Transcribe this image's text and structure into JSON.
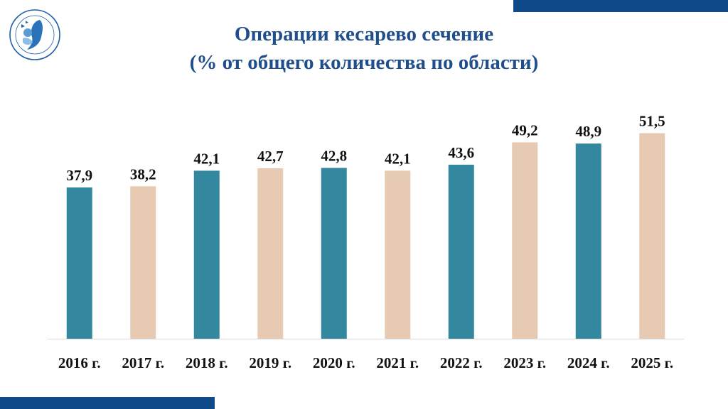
{
  "header": {
    "title_line1": "Операции кесарево сечение",
    "title_line2": "(% от общего количества по области)"
  },
  "colors": {
    "accent_bar": "#0f4a8a",
    "title": "#1f4e8a",
    "series_teal": "#33879e",
    "series_beige": "#e6cbb2",
    "axis": "#d9d9d9"
  },
  "chart_data": {
    "type": "bar",
    "title": "Операции кесарево сечение (% от общего количества по области)",
    "categories": [
      "2016 г.",
      "2017 г.",
      "2018 г.",
      "2019 г.",
      "2020 г.",
      "2021 г.",
      "2022 г.",
      "2023 г.",
      "2024 г.",
      "2025 г."
    ],
    "values": [
      37.9,
      38.2,
      42.1,
      42.7,
      42.8,
      42.1,
      43.6,
      49.2,
      48.9,
      51.5
    ],
    "value_labels": [
      "37,9",
      "38,2",
      "42,1",
      "42,7",
      "42,8",
      "42,1",
      "43,6",
      "49,2",
      "48,9",
      "51,5"
    ],
    "bar_colors": [
      "teal",
      "beige",
      "teal",
      "beige",
      "teal",
      "beige",
      "teal",
      "beige",
      "teal",
      "beige"
    ],
    "xlabel": "",
    "ylabel": "",
    "ylim": [
      0,
      60
    ],
    "grid": false
  }
}
